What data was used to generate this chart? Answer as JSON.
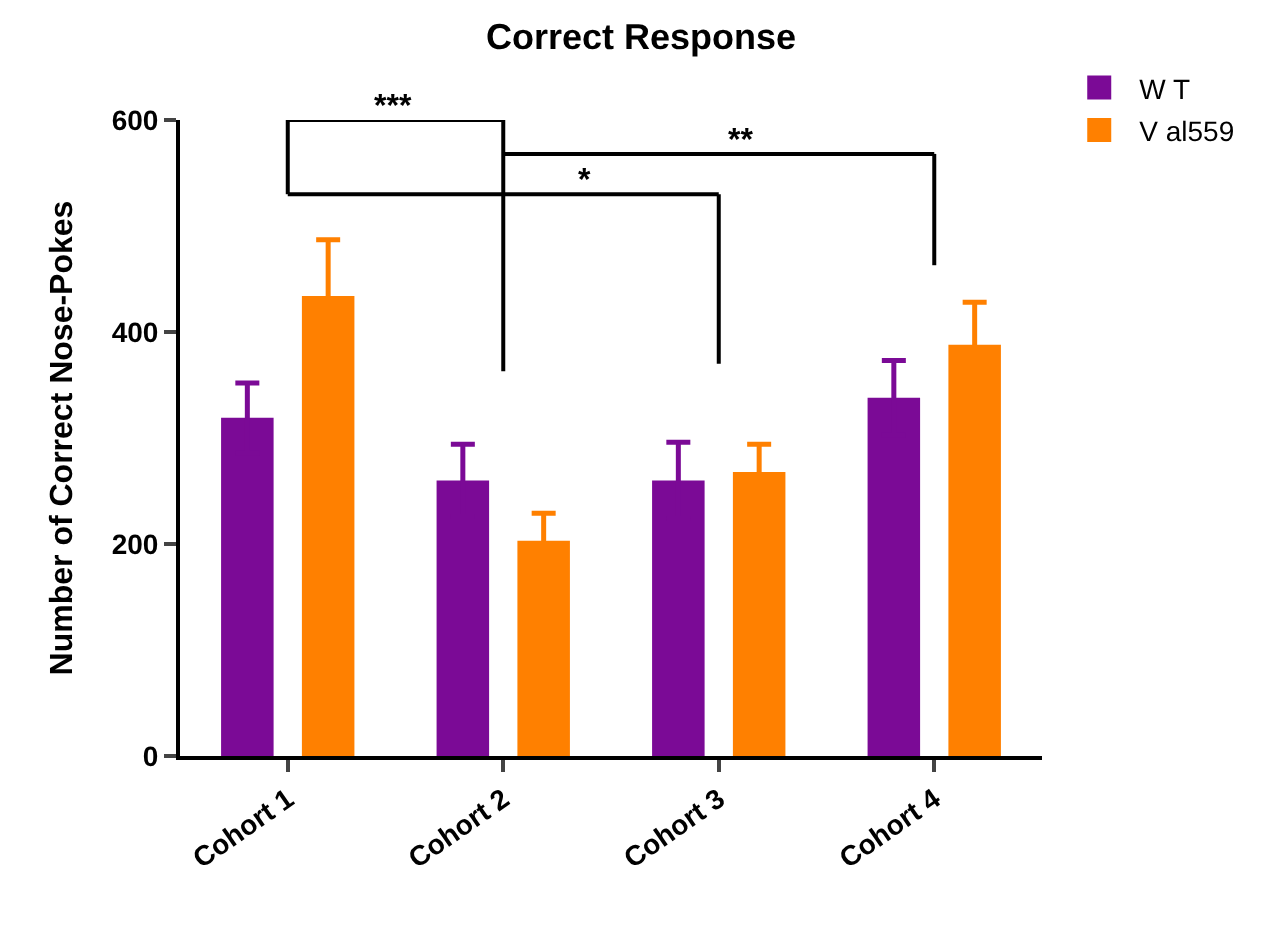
{
  "chart_data": {
    "type": "bar",
    "title": "Correct Response",
    "ylabel": "Number of Correct Nose-Pokes",
    "categories": [
      "Cohort 1",
      "Cohort 2",
      "Cohort 3",
      "Cohort 4"
    ],
    "series": [
      {
        "name": "W T",
        "color": "#7b0a96",
        "values": [
          319,
          260,
          260,
          338
        ],
        "errors": [
          33,
          34,
          36,
          35
        ]
      },
      {
        "name": "V al559",
        "color": "#ff8000",
        "values": [
          434,
          203,
          268,
          388
        ],
        "errors": [
          53,
          26,
          26,
          40
        ]
      }
    ],
    "ylim": [
      0,
      600
    ],
    "yticks": [
      0,
      200,
      400,
      600
    ],
    "legend": "top right",
    "annotations": [
      "***",
      "*",
      "**"
    ]
  }
}
